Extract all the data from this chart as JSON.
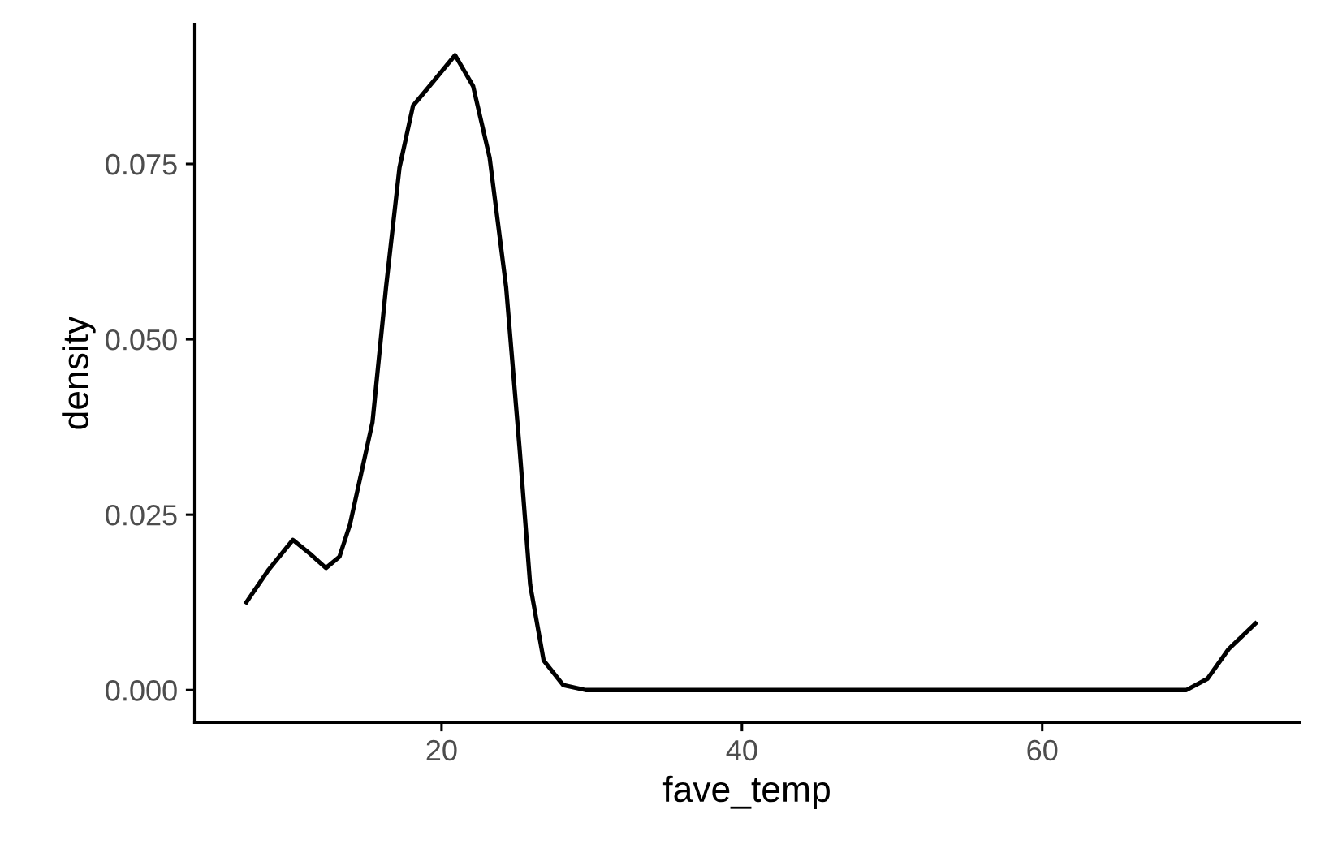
{
  "chart_data": {
    "type": "line",
    "xlabel": "fave_temp",
    "ylabel": "density",
    "x": [
      7.0,
      8.5,
      10.1,
      11.2,
      12.3,
      13.2,
      13.9,
      15.4,
      16.3,
      17.2,
      18.1,
      19.2,
      20.9,
      22.1,
      23.2,
      24.3,
      25.2,
      25.9,
      26.8,
      28.1,
      29.6,
      69.6,
      71.0,
      72.4,
      74.2
    ],
    "series": [
      {
        "color": "#000000",
        "values": [
          0.0125,
          0.0172,
          0.0214,
          0.0195,
          0.0174,
          0.019,
          0.0236,
          0.0382,
          0.0574,
          0.0745,
          0.0833,
          0.0861,
          0.0905,
          0.0861,
          0.0759,
          0.0574,
          0.0343,
          0.015,
          0.0042,
          0.0007,
          0.0,
          0.0,
          0.0016,
          0.0058,
          0.0095
        ]
      }
    ],
    "xlim": [
      3.57,
      77.1
    ],
    "ylim": [
      -0.0046,
      0.0949
    ],
    "xticks": [
      20,
      40,
      60
    ],
    "yticks": [
      {
        "value": 0,
        "label": "0.000"
      },
      {
        "value": 0.025,
        "label": "0.025"
      },
      {
        "value": 0.05,
        "label": "0.050"
      },
      {
        "value": 0.075,
        "label": "0.075"
      }
    ],
    "grid": false,
    "legend": false,
    "marker": "none",
    "line_style": "solid"
  }
}
